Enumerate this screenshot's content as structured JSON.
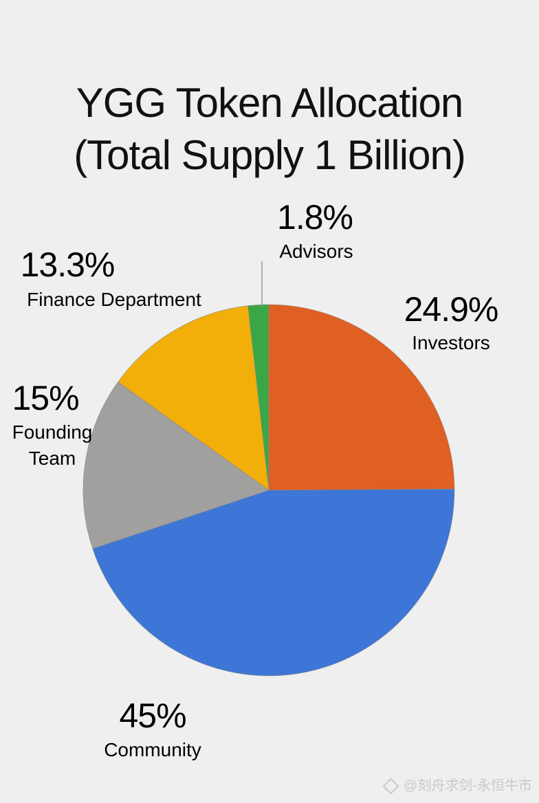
{
  "chart_data": {
    "type": "pie",
    "title_line1": "YGG Token Allocation",
    "title_line2": "(Total Supply 1 Billion)",
    "slices": [
      {
        "name": "Advisors",
        "value": 1.8,
        "pct_label": "1.8%",
        "color": "#3aa646"
      },
      {
        "name": "Investors",
        "value": 24.9,
        "pct_label": "24.9%",
        "color": "#e05f22"
      },
      {
        "name": "Community",
        "value": 45,
        "pct_label": "45%",
        "color": "#3d76d6"
      },
      {
        "name": "Founding Team",
        "value": 15,
        "pct_label": "15%",
        "color": "#a0a09f",
        "name_lines": [
          "Founding",
          "Team"
        ]
      },
      {
        "name": "Finance Department",
        "value": 13.3,
        "pct_label": "13.3%",
        "color": "#f2ae09"
      }
    ]
  },
  "watermark": "@刻舟求剑-永恒牛市"
}
